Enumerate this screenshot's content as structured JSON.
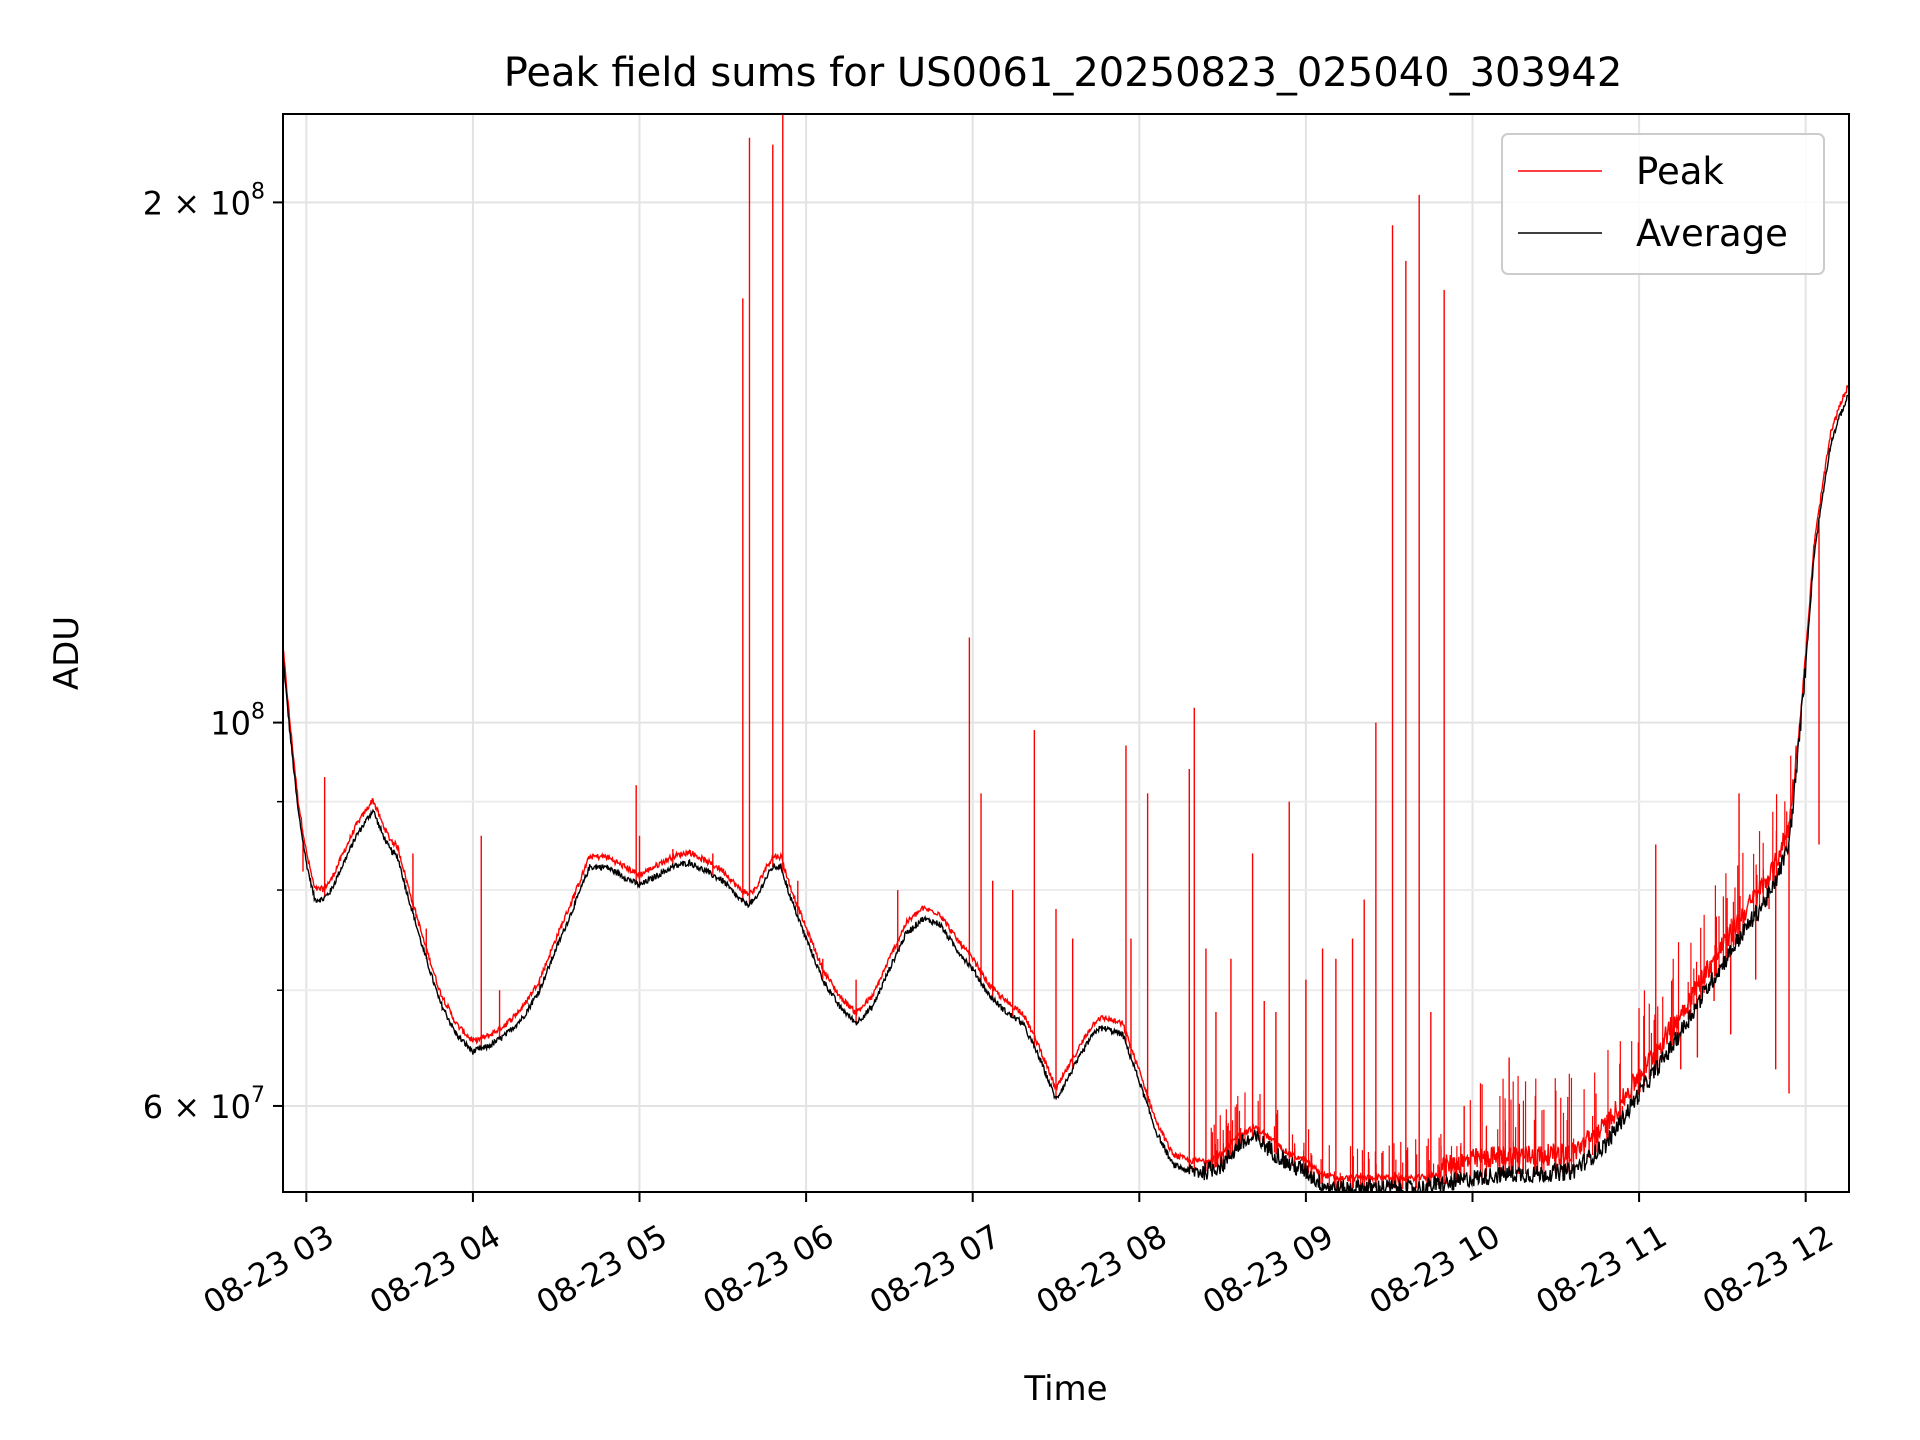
{
  "chart_data": {
    "type": "line",
    "title": "Peak field sums for US0061_20250823_025040_303942",
    "xlabel": "Time",
    "ylabel": "ADU",
    "y_scale": "log",
    "ylim": [
      53500000,
      225000000
    ],
    "x_unit": "hour of 2025-08-23",
    "xlim": [
      2.86,
      12.26
    ],
    "x_ticks": [
      {
        "value": 3,
        "label": "08-23 03"
      },
      {
        "value": 4,
        "label": "08-23 04"
      },
      {
        "value": 5,
        "label": "08-23 05"
      },
      {
        "value": 6,
        "label": "08-23 06"
      },
      {
        "value": 7,
        "label": "08-23 07"
      },
      {
        "value": 8,
        "label": "08-23 08"
      },
      {
        "value": 9,
        "label": "08-23 09"
      },
      {
        "value": 10,
        "label": "08-23 10"
      },
      {
        "value": 11,
        "label": "08-23 11"
      },
      {
        "value": 12,
        "label": "08-23 12"
      }
    ],
    "y_ticks": [
      {
        "value": 60000000,
        "label_mant": "6 × 10",
        "label_exp": "7"
      },
      {
        "value": 100000000,
        "label_mant": "10",
        "label_exp": "8"
      },
      {
        "value": 200000000,
        "label_mant": "2 × 10",
        "label_exp": "8"
      }
    ],
    "y_minor_ticks": [
      70000000,
      80000000,
      90000000
    ],
    "grid": true,
    "legend": {
      "position": "top-right"
    },
    "series": [
      {
        "name": "Average",
        "color": "#000000",
        "x": [
          2.86,
          2.9,
          2.95,
          3.0,
          3.05,
          3.1,
          3.15,
          3.2,
          3.3,
          3.4,
          3.45,
          3.5,
          3.55,
          3.6,
          3.7,
          3.8,
          3.9,
          4.0,
          4.1,
          4.15,
          4.2,
          4.3,
          4.4,
          4.5,
          4.6,
          4.7,
          4.8,
          4.85,
          4.9,
          4.95,
          5.0,
          5.05,
          5.1,
          5.15,
          5.2,
          5.3,
          5.4,
          5.5,
          5.6,
          5.65,
          5.7,
          5.75,
          5.8,
          5.85,
          5.9,
          6.0,
          6.1,
          6.2,
          6.3,
          6.4,
          6.5,
          6.6,
          6.7,
          6.8,
          6.9,
          7.0,
          7.1,
          7.2,
          7.3,
          7.4,
          7.5,
          7.6,
          7.7,
          7.75,
          7.8,
          7.9,
          8.0,
          8.1,
          8.2,
          8.3,
          8.4,
          8.5,
          8.6,
          8.7,
          8.8,
          8.9,
          9.0,
          9.1,
          9.2,
          9.3,
          9.4,
          9.5,
          9.6,
          9.7,
          9.8,
          9.9,
          10.0,
          10.2,
          10.4,
          10.6,
          10.8,
          11.0,
          11.2,
          11.4,
          11.6,
          11.8,
          11.9,
          11.95,
          12.0,
          12.05,
          12.1,
          12.15,
          12.2,
          12.26
        ],
        "y": [
          109000000,
          99000000,
          89000000,
          83000000,
          79000000,
          79000000,
          80000000,
          82000000,
          86000000,
          89000000,
          86500000,
          84500000,
          83500000,
          80000000,
          74000000,
          69000000,
          66000000,
          64500000,
          65000000,
          65500000,
          66000000,
          67500000,
          70000000,
          74000000,
          78000000,
          82500000,
          82500000,
          82000000,
          81500000,
          81000000,
          80500000,
          81000000,
          81500000,
          82000000,
          82500000,
          83000000,
          82000000,
          81000000,
          79000000,
          78500000,
          79000000,
          81000000,
          82500000,
          82500000,
          79500000,
          75000000,
          71000000,
          68500000,
          67000000,
          68500000,
          72000000,
          75500000,
          77000000,
          76500000,
          74000000,
          72000000,
          69500000,
          68000000,
          67000000,
          64000000,
          60500000,
          63000000,
          65500000,
          66500000,
          66500000,
          66000000,
          62000000,
          58000000,
          55500000,
          55000000,
          55000000,
          55500000,
          57000000,
          57500000,
          56500000,
          55500000,
          55000000,
          54000000,
          53700000,
          53800000,
          53800000,
          53800000,
          53700000,
          53800000,
          54000000,
          54200000,
          54500000,
          54800000,
          54800000,
          55000000,
          57000000,
          61000000,
          65000000,
          70000000,
          75000000,
          80000000,
          85000000,
          95000000,
          108000000,
          125000000,
          135000000,
          145000000,
          150000000,
          155000000
        ]
      },
      {
        "name": "Peak",
        "color": "#ff0000",
        "spikes": [
          {
            "x": 2.98,
            "y": 82000000
          },
          {
            "x": 3.11,
            "y": 93000000
          },
          {
            "x": 3.72,
            "y": 76000000
          },
          {
            "x": 4.05,
            "y": 86000000
          },
          {
            "x": 4.16,
            "y": 70000000
          },
          {
            "x": 4.98,
            "y": 92000000
          },
          {
            "x": 5.0,
            "y": 86000000
          },
          {
            "x": 5.44,
            "y": 84000000
          },
          {
            "x": 5.62,
            "y": 176000000
          },
          {
            "x": 5.66,
            "y": 218000000
          },
          {
            "x": 5.8,
            "y": 216000000
          },
          {
            "x": 5.86,
            "y": 225000000
          },
          {
            "x": 6.55,
            "y": 80000000
          },
          {
            "x": 6.98,
            "y": 112000000
          },
          {
            "x": 7.05,
            "y": 91000000
          },
          {
            "x": 7.37,
            "y": 99000000
          },
          {
            "x": 7.92,
            "y": 97000000
          },
          {
            "x": 7.95,
            "y": 75000000
          },
          {
            "x": 8.05,
            "y": 91000000
          },
          {
            "x": 8.3,
            "y": 94000000
          },
          {
            "x": 8.33,
            "y": 102000000
          },
          {
            "x": 8.68,
            "y": 84000000
          },
          {
            "x": 8.9,
            "y": 90000000
          },
          {
            "x": 9.42,
            "y": 100000000
          },
          {
            "x": 9.52,
            "y": 194000000
          },
          {
            "x": 9.6,
            "y": 185000000
          },
          {
            "x": 9.68,
            "y": 202000000
          },
          {
            "x": 9.83,
            "y": 178000000
          },
          {
            "x": 10.22,
            "y": 64000000
          },
          {
            "x": 11.1,
            "y": 85000000
          },
          {
            "x": 11.6,
            "y": 91000000
          },
          {
            "x": 11.78,
            "y": 78000000
          },
          {
            "x": 12.08,
            "y": 85000000
          }
        ],
        "noise_spikes": [
          {
            "x": 3.64,
            "y": 84000000
          },
          {
            "x": 4.4,
            "y": 71000000
          },
          {
            "x": 5.2,
            "y": 84500000
          },
          {
            "x": 5.95,
            "y": 81000000
          },
          {
            "x": 6.1,
            "y": 73000000
          },
          {
            "x": 6.3,
            "y": 71000000
          },
          {
            "x": 7.12,
            "y": 81000000
          },
          {
            "x": 7.24,
            "y": 80000000
          },
          {
            "x": 7.5,
            "y": 78000000
          },
          {
            "x": 7.6,
            "y": 75000000
          },
          {
            "x": 8.4,
            "y": 74000000
          },
          {
            "x": 8.46,
            "y": 68000000
          },
          {
            "x": 8.55,
            "y": 73000000
          },
          {
            "x": 8.75,
            "y": 69000000
          },
          {
            "x": 8.82,
            "y": 68000000
          },
          {
            "x": 9.0,
            "y": 71000000
          },
          {
            "x": 9.1,
            "y": 74000000
          },
          {
            "x": 9.18,
            "y": 73000000
          },
          {
            "x": 9.28,
            "y": 75000000
          },
          {
            "x": 9.35,
            "y": 79000000
          },
          {
            "x": 9.75,
            "y": 68000000
          },
          {
            "x": 9.95,
            "y": 60000000
          },
          {
            "x": 10.5,
            "y": 57000000
          },
          {
            "x": 10.7,
            "y": 58000000
          },
          {
            "x": 10.9,
            "y": 60000000
          },
          {
            "x": 11.0,
            "y": 62000000
          },
          {
            "x": 11.25,
            "y": 63000000
          },
          {
            "x": 11.35,
            "y": 64000000
          },
          {
            "x": 11.45,
            "y": 69000000
          },
          {
            "x": 11.55,
            "y": 66000000
          },
          {
            "x": 11.7,
            "y": 71000000
          },
          {
            "x": 11.82,
            "y": 63000000
          },
          {
            "x": 11.9,
            "y": 61000000
          }
        ]
      }
    ]
  }
}
